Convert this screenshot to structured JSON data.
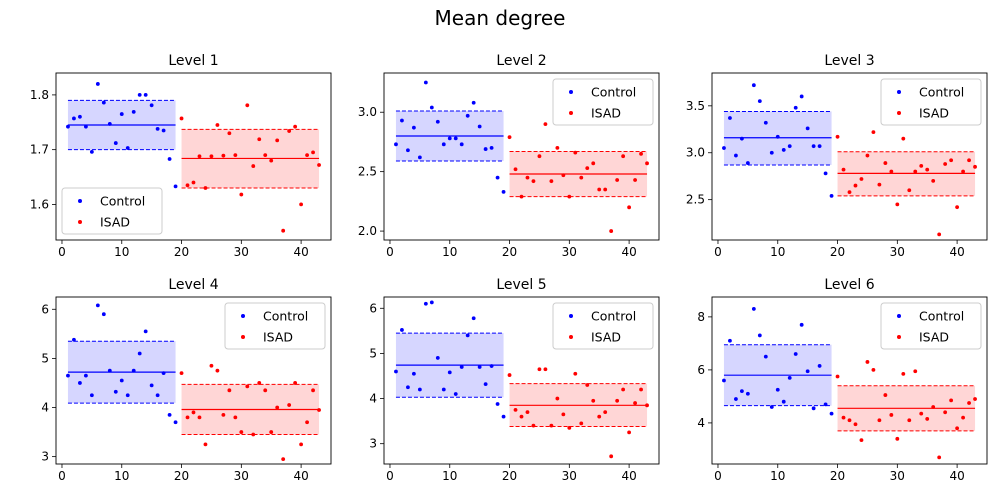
{
  "figure": {
    "title": "Mean degree"
  },
  "colors": {
    "control": "#0000ff",
    "isad": "#ff0000",
    "control_fill": "#ccccff",
    "isad_fill": "#ffcccc"
  },
  "chart_data": [
    {
      "type": "scatter",
      "title": "Level 1",
      "xlim": [
        -1,
        45
      ],
      "ylim": [
        1.535,
        1.84
      ],
      "xticks": [
        0,
        10,
        20,
        30,
        40
      ],
      "yticks": [
        1.6,
        1.7,
        1.8
      ],
      "xticklabels": [
        "0",
        "10",
        "20",
        "30",
        "40"
      ],
      "yticklabels": [
        "1.6",
        "1.7",
        "1.8"
      ],
      "legend": "lower-left",
      "series": [
        {
          "name": "Control",
          "mean": 1.745,
          "band": [
            1.7,
            1.79
          ],
          "x": [
            1,
            2,
            3,
            4,
            5,
            6,
            7,
            8,
            9,
            10,
            11,
            12,
            13,
            14,
            15,
            16,
            17,
            18,
            19
          ],
          "y": [
            1.742,
            1.757,
            1.76,
            1.742,
            1.696,
            1.82,
            1.786,
            1.747,
            1.712,
            1.765,
            1.703,
            1.769,
            1.8,
            1.8,
            1.781,
            1.738,
            1.735,
            1.683,
            1.633
          ]
        },
        {
          "name": "ISAD",
          "mean": 1.684,
          "band": [
            1.63,
            1.737
          ],
          "x": [
            20,
            21,
            22,
            23,
            24,
            25,
            26,
            27,
            28,
            29,
            30,
            31,
            32,
            33,
            34,
            35,
            36,
            37,
            38,
            39,
            40,
            41,
            42,
            43
          ],
          "y": [
            1.757,
            1.635,
            1.64,
            1.688,
            1.63,
            1.688,
            1.745,
            1.689,
            1.73,
            1.69,
            1.618,
            1.781,
            1.67,
            1.719,
            1.69,
            1.68,
            1.717,
            1.552,
            1.734,
            1.742,
            1.6,
            1.69,
            1.695,
            1.672
          ]
        }
      ]
    },
    {
      "type": "scatter",
      "title": "Level 2",
      "xlim": [
        -1,
        45
      ],
      "ylim": [
        1.925,
        3.33
      ],
      "xticks": [
        0,
        10,
        20,
        30,
        40
      ],
      "yticks": [
        2.0,
        2.5,
        3.0
      ],
      "xticklabels": [
        "0",
        "10",
        "20",
        "30",
        "40"
      ],
      "yticklabels": [
        "2.0",
        "2.5",
        "3.0"
      ],
      "legend": "upper-right",
      "series": [
        {
          "name": "Control",
          "mean": 2.8,
          "band": [
            2.59,
            3.01
          ],
          "x": [
            1,
            2,
            3,
            4,
            5,
            6,
            7,
            8,
            9,
            10,
            11,
            12,
            13,
            14,
            15,
            16,
            17,
            18,
            19
          ],
          "y": [
            2.73,
            2.93,
            2.68,
            2.87,
            2.62,
            3.25,
            3.04,
            2.92,
            2.73,
            2.78,
            2.78,
            2.73,
            2.97,
            3.08,
            2.88,
            2.69,
            2.7,
            2.45,
            2.33
          ]
        },
        {
          "name": "ISAD",
          "mean": 2.48,
          "band": [
            2.29,
            2.67
          ],
          "x": [
            20,
            21,
            22,
            23,
            24,
            25,
            26,
            27,
            28,
            29,
            30,
            31,
            32,
            33,
            34,
            35,
            36,
            37,
            38,
            39,
            40,
            41,
            42,
            43
          ],
          "y": [
            2.79,
            2.52,
            2.29,
            2.45,
            2.42,
            2.63,
            2.9,
            2.42,
            2.7,
            2.47,
            2.29,
            2.66,
            2.45,
            2.53,
            2.57,
            2.35,
            2.35,
            2.0,
            2.43,
            2.63,
            2.2,
            2.43,
            2.65,
            2.57
          ]
        }
      ]
    },
    {
      "type": "scatter",
      "title": "Level 3",
      "xlim": [
        -1,
        45
      ],
      "ylim": [
        2.07,
        3.85
      ],
      "xticks": [
        0,
        10,
        20,
        30,
        40
      ],
      "yticks": [
        2.5,
        3.0,
        3.5
      ],
      "xticklabels": [
        "0",
        "10",
        "20",
        "30",
        "40"
      ],
      "yticklabels": [
        "2.5",
        "3.0",
        "3.5"
      ],
      "legend": "upper-right",
      "series": [
        {
          "name": "Control",
          "mean": 3.16,
          "band": [
            2.87,
            3.44
          ],
          "x": [
            1,
            2,
            3,
            4,
            5,
            6,
            7,
            8,
            9,
            10,
            11,
            12,
            13,
            14,
            15,
            16,
            17,
            18,
            19
          ],
          "y": [
            3.05,
            3.37,
            2.97,
            3.15,
            2.89,
            3.72,
            3.55,
            3.32,
            3.0,
            3.17,
            3.03,
            3.07,
            3.48,
            3.6,
            3.26,
            3.07,
            3.07,
            2.78,
            2.54
          ]
        },
        {
          "name": "ISAD",
          "mean": 2.78,
          "band": [
            2.54,
            3.01
          ],
          "x": [
            20,
            21,
            22,
            23,
            24,
            25,
            26,
            27,
            28,
            29,
            30,
            31,
            32,
            33,
            34,
            35,
            36,
            37,
            38,
            39,
            40,
            41,
            42,
            43
          ],
          "y": [
            3.17,
            2.82,
            2.58,
            2.65,
            2.72,
            2.97,
            3.22,
            2.66,
            2.89,
            2.8,
            2.45,
            3.15,
            2.6,
            2.8,
            2.86,
            2.82,
            2.7,
            2.13,
            2.88,
            2.92,
            2.42,
            2.8,
            2.92,
            2.85
          ]
        }
      ]
    },
    {
      "type": "scatter",
      "title": "Level 4",
      "xlim": [
        -1,
        45
      ],
      "ylim": [
        2.85,
        6.25
      ],
      "xticks": [
        0,
        10,
        20,
        30,
        40
      ],
      "yticks": [
        3,
        4,
        5,
        6
      ],
      "xticklabels": [
        "0",
        "10",
        "20",
        "30",
        "40"
      ],
      "yticklabels": [
        "3",
        "4",
        "5",
        "6"
      ],
      "legend": "upper-right",
      "series": [
        {
          "name": "Control",
          "mean": 4.72,
          "band": [
            4.09,
            5.35
          ],
          "x": [
            1,
            2,
            3,
            4,
            5,
            6,
            7,
            8,
            9,
            10,
            11,
            12,
            13,
            14,
            15,
            16,
            17,
            18,
            19
          ],
          "y": [
            4.65,
            5.38,
            4.5,
            4.65,
            4.25,
            6.08,
            5.9,
            4.75,
            4.32,
            4.55,
            4.25,
            4.75,
            5.1,
            5.55,
            4.45,
            4.25,
            4.7,
            3.85,
            3.7
          ]
        },
        {
          "name": "ISAD",
          "mean": 3.96,
          "band": [
            3.45,
            4.47
          ],
          "x": [
            20,
            21,
            22,
            23,
            24,
            25,
            26,
            27,
            28,
            29,
            30,
            31,
            32,
            33,
            34,
            35,
            36,
            37,
            38,
            39,
            40,
            41,
            42,
            43
          ],
          "y": [
            4.7,
            3.8,
            3.9,
            3.8,
            3.25,
            4.85,
            4.75,
            3.85,
            4.35,
            3.8,
            3.5,
            4.43,
            3.45,
            4.5,
            4.35,
            3.5,
            4.0,
            2.95,
            4.05,
            4.5,
            3.25,
            3.7,
            4.35,
            3.95
          ]
        }
      ]
    },
    {
      "type": "scatter",
      "title": "Level 5",
      "xlim": [
        -1,
        45
      ],
      "ylim": [
        2.55,
        6.25
      ],
      "xticks": [
        0,
        10,
        20,
        30,
        40
      ],
      "yticks": [
        3,
        4,
        5,
        6
      ],
      "xticklabels": [
        "0",
        "10",
        "20",
        "30",
        "40"
      ],
      "yticklabels": [
        "3",
        "4",
        "5",
        "6"
      ],
      "legend": "upper-right",
      "series": [
        {
          "name": "Control",
          "mean": 4.74,
          "band": [
            4.03,
            5.45
          ],
          "x": [
            1,
            2,
            3,
            4,
            5,
            6,
            7,
            8,
            9,
            10,
            11,
            12,
            13,
            14,
            15,
            16,
            17,
            18,
            19
          ],
          "y": [
            4.6,
            5.52,
            4.25,
            4.55,
            4.2,
            6.1,
            6.13,
            4.9,
            4.2,
            4.58,
            4.1,
            4.7,
            5.4,
            5.78,
            4.7,
            4.32,
            4.72,
            3.88,
            3.6
          ]
        },
        {
          "name": "ISAD",
          "mean": 3.85,
          "band": [
            3.38,
            4.33
          ],
          "x": [
            20,
            21,
            22,
            23,
            24,
            25,
            26,
            27,
            28,
            29,
            30,
            31,
            32,
            33,
            34,
            35,
            36,
            37,
            38,
            39,
            40,
            41,
            42,
            43
          ],
          "y": [
            4.52,
            3.75,
            3.6,
            3.7,
            3.4,
            4.65,
            4.65,
            3.4,
            4.0,
            3.65,
            3.35,
            4.55,
            3.45,
            4.3,
            3.95,
            3.6,
            3.7,
            2.72,
            3.95,
            4.2,
            3.25,
            3.9,
            4.2,
            3.85
          ]
        }
      ]
    },
    {
      "type": "scatter",
      "title": "Level 6",
      "xlim": [
        -1,
        45
      ],
      "ylim": [
        2.45,
        8.75
      ],
      "xticks": [
        0,
        10,
        20,
        30,
        40
      ],
      "yticks": [
        4,
        6,
        8
      ],
      "xticklabels": [
        "0",
        "10",
        "20",
        "30",
        "40"
      ],
      "yticklabels": [
        "4",
        "6",
        "8"
      ],
      "legend": "upper-right",
      "series": [
        {
          "name": "Control",
          "mean": 5.8,
          "band": [
            4.65,
            6.95
          ],
          "x": [
            1,
            2,
            3,
            4,
            5,
            6,
            7,
            8,
            9,
            10,
            11,
            12,
            13,
            14,
            15,
            16,
            17,
            18,
            19
          ],
          "y": [
            5.6,
            7.1,
            4.9,
            5.2,
            5.1,
            8.3,
            7.3,
            6.5,
            4.6,
            5.25,
            4.8,
            5.7,
            6.6,
            7.7,
            5.95,
            4.55,
            6.15,
            4.7,
            4.35
          ]
        },
        {
          "name": "ISAD",
          "mean": 4.55,
          "band": [
            3.7,
            5.4
          ],
          "x": [
            20,
            21,
            22,
            23,
            24,
            25,
            26,
            27,
            28,
            29,
            30,
            31,
            32,
            33,
            34,
            35,
            36,
            37,
            38,
            39,
            40,
            41,
            42,
            43
          ],
          "y": [
            5.75,
            4.2,
            4.1,
            3.95,
            3.35,
            6.3,
            6.0,
            4.1,
            5.05,
            4.3,
            3.4,
            5.85,
            4.1,
            5.95,
            4.35,
            4.15,
            4.6,
            2.7,
            4.4,
            4.85,
            3.8,
            4.2,
            4.75,
            4.9
          ]
        }
      ]
    }
  ]
}
